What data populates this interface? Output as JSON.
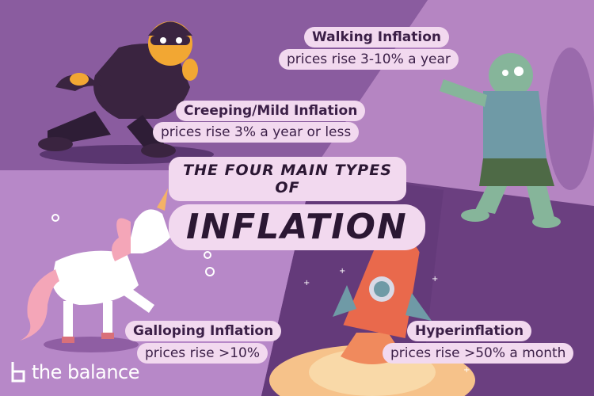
{
  "header": {
    "title_line1": "THE FOUR MAIN TYPES OF",
    "title_line2": "INFLATION"
  },
  "types": {
    "walking": {
      "name": "Walking Inflation",
      "desc": "prices rise 3-10% a year"
    },
    "creeping": {
      "name": "Creeping/Mild Inflation",
      "desc": "prices rise 3% a year or less"
    },
    "galloping": {
      "name": "Galloping Inflation",
      "desc": "prices rise >10%"
    },
    "hyper": {
      "name": "Hyperinflation",
      "desc": "prices rise >50% a month"
    }
  },
  "brand": {
    "name": "the balance"
  },
  "colors": {
    "purple_dark": "#7a4f8f",
    "purple_light": "#b585c2",
    "purple_mid": "#8f5ea3",
    "pill": "#f2d9ef",
    "text": "#3b1f47"
  },
  "icons": [
    "burglar-illustration",
    "zombie-illustration",
    "unicorn-illustration",
    "rocket-illustration",
    "balance-logo-icon"
  ]
}
